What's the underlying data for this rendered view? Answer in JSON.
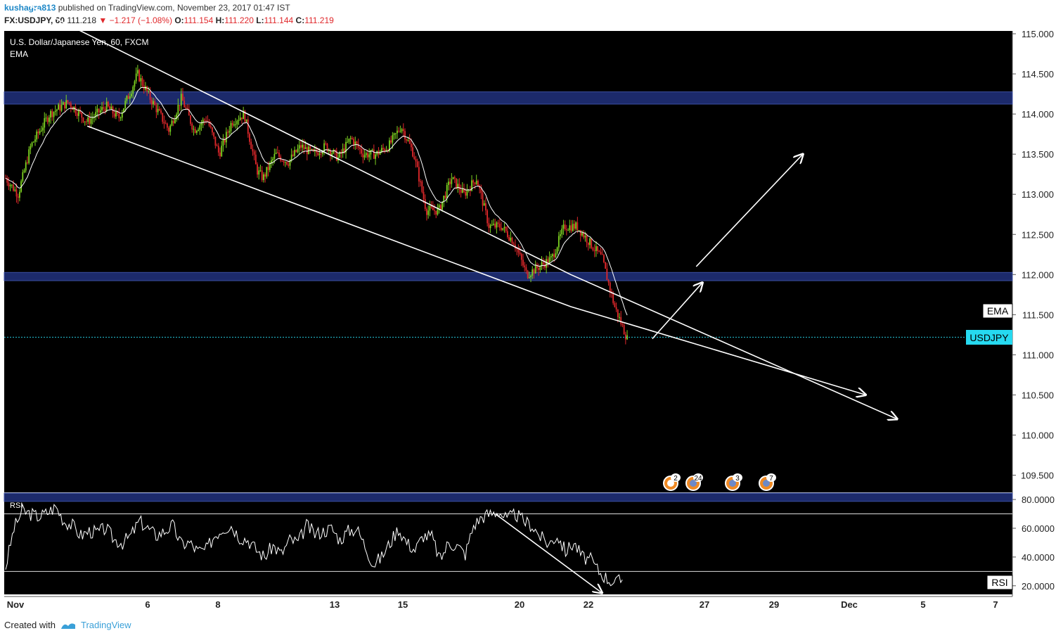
{
  "header": {
    "user": "kushagra813",
    "published": "published on TradingView.com, November 23, 2017 01:47 IST",
    "symbol": "FX:USDJPY, 60",
    "last": "111.218",
    "change": "−1.217 (−1.08%)",
    "open_label": "O:",
    "open": "111.154",
    "high_label": "H:",
    "high": "111.220",
    "low_label": "L:",
    "low": "111.144",
    "close_label": "C:",
    "close": "111.219"
  },
  "legend": {
    "title": "U.S. Dollar/Japanese Yen, 60, FXCM",
    "indicator": "EMA",
    "rsi": "RSI"
  },
  "labels": {
    "ema_tag": "EMA",
    "price_tag": "USDJPY",
    "rsi_tag": "RSI"
  },
  "events": [
    "2",
    "24",
    "3",
    "7"
  ],
  "footer": {
    "created": "Created with",
    "brand": "TradingView"
  },
  "colors": {
    "background": "#000000",
    "up": "#7ed321",
    "down": "#e0282b",
    "zone": "#1c2a6b",
    "zone_edge": "#3b4fa0",
    "ema": "#ffffff",
    "price_line": "#26c6da"
  },
  "chart_data": {
    "type": "candlestick",
    "title": "U.S. Dollar/Japanese Yen, 60, FXCM",
    "price_axis": {
      "min": 109.2,
      "max": 115.0,
      "ticks": [
        "115.000",
        "114.500",
        "114.000",
        "113.500",
        "113.000",
        "112.500",
        "112.000",
        "111.500",
        "111.000",
        "110.500",
        "110.000",
        "109.500"
      ]
    },
    "time_axis": {
      "ticks": [
        "Nov",
        "6",
        "8",
        "13",
        "15",
        "20",
        "22",
        "27",
        "29",
        "Dec",
        "5",
        "7"
      ]
    },
    "price_path": [
      [
        0,
        113.2
      ],
      [
        2,
        113.0
      ],
      [
        4,
        113.6
      ],
      [
        7,
        114.0
      ],
      [
        10,
        114.15
      ],
      [
        13,
        113.9
      ],
      [
        16,
        114.1
      ],
      [
        18,
        113.95
      ],
      [
        20,
        114.3
      ],
      [
        21,
        114.5
      ],
      [
        23,
        114.2
      ],
      [
        26,
        113.8
      ],
      [
        28,
        114.2
      ],
      [
        30,
        113.8
      ],
      [
        32,
        113.95
      ],
      [
        34,
        113.5
      ],
      [
        36,
        113.9
      ],
      [
        38,
        114.0
      ],
      [
        40,
        113.3
      ],
      [
        41,
        113.2
      ],
      [
        43,
        113.5
      ],
      [
        45,
        113.4
      ],
      [
        47,
        113.6
      ],
      [
        49,
        113.5
      ],
      [
        51,
        113.6
      ],
      [
        53,
        113.45
      ],
      [
        55,
        113.7
      ],
      [
        57,
        113.5
      ],
      [
        59,
        113.5
      ],
      [
        61,
        113.6
      ],
      [
        63,
        113.85
      ],
      [
        65,
        113.5
      ],
      [
        67,
        112.8
      ],
      [
        69,
        112.8
      ],
      [
        71,
        113.2
      ],
      [
        73,
        113.0
      ],
      [
        75,
        113.2
      ],
      [
        77,
        112.6
      ],
      [
        79,
        112.6
      ],
      [
        81,
        112.4
      ],
      [
        83,
        112.0
      ],
      [
        85,
        112.1
      ],
      [
        87,
        112.2
      ],
      [
        89,
        112.6
      ],
      [
        91,
        112.6
      ],
      [
        93,
        112.4
      ],
      [
        95,
        112.2
      ],
      [
        97,
        111.6
      ],
      [
        99,
        111.2
      ]
    ],
    "ema_label": "EMA",
    "last_price": 111.219,
    "support_resistance_zones": [
      [
        114.15,
        114.25
      ],
      [
        111.95,
        112.0
      ],
      [
        109.2,
        109.25
      ]
    ],
    "channel_upper": [
      [
        0,
        115.5
      ],
      [
        90,
        112.0
      ],
      [
        142,
        110.2
      ]
    ],
    "channel_lower": [
      [
        13,
        113.85
      ],
      [
        90,
        111.6
      ],
      [
        137,
        110.5
      ]
    ],
    "projection_arrows": [
      [
        [
          103,
          111.2
        ],
        [
          111,
          111.9
        ]
      ],
      [
        [
          110,
          112.1
        ],
        [
          127,
          113.5
        ]
      ]
    ],
    "rsi": {
      "name": "RSI",
      "ticks": [
        "80.0000",
        "60.0000",
        "40.0000",
        "20.0000"
      ],
      "bands": [
        70,
        30
      ],
      "min": 15,
      "max": 82,
      "values": [
        33,
        60,
        72,
        70,
        68,
        71,
        75,
        65,
        62,
        55,
        58,
        57,
        60,
        52,
        50,
        55,
        65,
        60,
        55,
        58,
        62,
        49,
        50,
        44,
        45,
        55,
        60,
        62,
        54,
        52,
        45,
        40,
        48,
        42,
        52,
        50,
        62,
        56,
        58,
        60,
        52,
        58,
        60,
        48,
        35,
        40,
        50,
        60,
        50,
        45,
        55,
        54,
        38,
        50,
        48,
        42,
        62,
        68,
        70,
        72,
        66,
        70,
        65,
        62,
        54,
        49,
        55,
        44,
        50,
        40,
        38,
        30,
        25,
        22,
        25
      ],
      "trend_arrow": [
        [
          78,
          70
        ],
        [
          95,
          15
        ]
      ]
    }
  }
}
